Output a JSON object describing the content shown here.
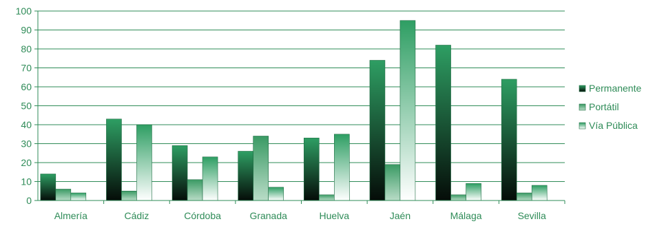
{
  "chart_data": {
    "type": "bar",
    "categories": [
      "Almería",
      "Cádiz",
      "Córdoba",
      "Granada",
      "Huelva",
      "Jaén",
      "Málaga",
      "Sevilla"
    ],
    "series": [
      {
        "name": "Permanente",
        "values": [
          14,
          43,
          29,
          26,
          33,
          74,
          82,
          64
        ]
      },
      {
        "name": "Portátil",
        "values": [
          6,
          5,
          11,
          34,
          3,
          19,
          3,
          4
        ]
      },
      {
        "name": "Vía Pública",
        "values": [
          4,
          40,
          23,
          7,
          35,
          95,
          9,
          8
        ]
      }
    ],
    "yticks": [
      "0",
      "10",
      "20",
      "30",
      "40",
      "50",
      "60",
      "70",
      "80",
      "90",
      "100"
    ],
    "ylim": [
      0,
      100
    ],
    "grid": true,
    "legend": "right",
    "colors": {
      "axis": "#2e8b57",
      "text": "#2e8b57",
      "permanente_top": "#2e9e63",
      "permanente_bottom": "#050c08",
      "portatil_top": "#3a9a64",
      "portatil_bottom": "#b9dcc7",
      "via_top": "#2e9e63",
      "via_bottom": "#ffffff"
    }
  }
}
